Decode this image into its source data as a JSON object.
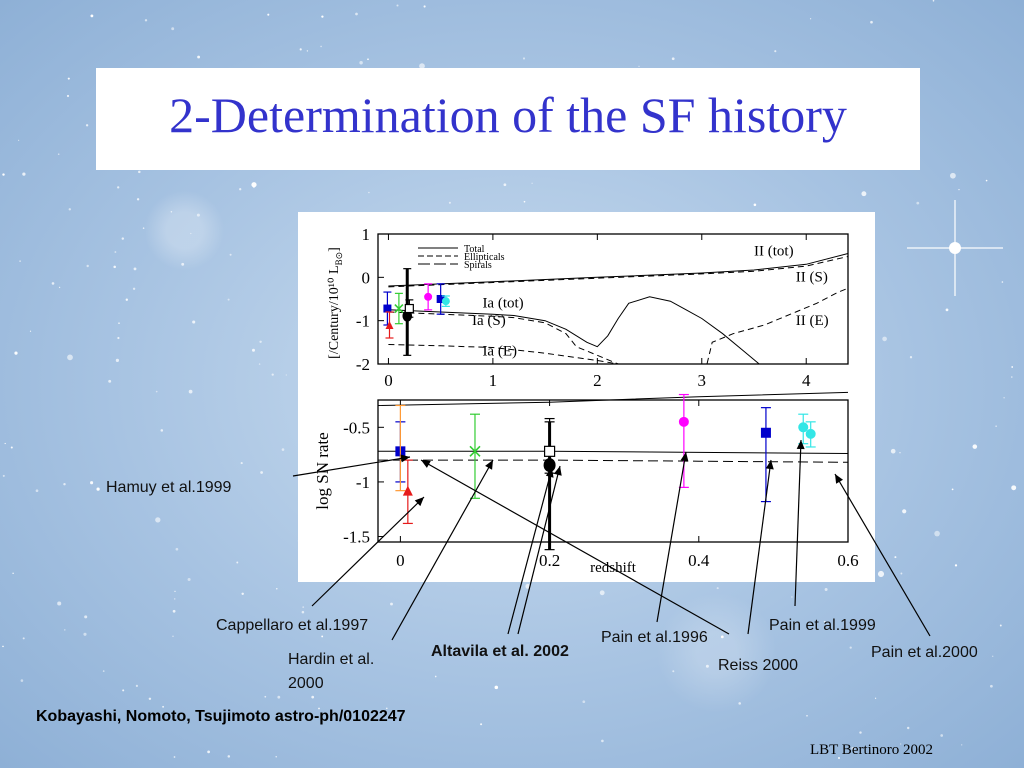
{
  "slide": {
    "title": "2-Determination of the SF history",
    "citation": "Kobayashi, Nomoto, Tsujimoto astro-ph/0102247",
    "footer": "LBT Bertinoro 2002"
  },
  "annotations": {
    "hamuy": "Hamuy  et al.1999",
    "cappellaro": "Cappellaro  et al.1997",
    "hardin_line1": "Hardin et al.",
    "hardin_line2": "2000",
    "altavila": "Altavila et al. 2002",
    "pain1996": "Pain et al.1996",
    "reiss": "Reiss 2000",
    "pain1999": "Pain et al.1999",
    "pain2000": "Pain et al.2000"
  },
  "colors": {
    "title": "#3333cc",
    "blue": "#0000cc",
    "magenta": "#ff00ff",
    "cyan": "#33e6e6",
    "green": "#33cc33",
    "orange": "#ff9933",
    "red": "#e61a1a"
  },
  "chart_data": [
    {
      "type": "line",
      "xlim": [
        -0.1,
        4.4
      ],
      "ylim": [
        -2,
        1
      ],
      "xticks": [
        "0",
        "1",
        "2",
        "3",
        "4"
      ],
      "yticks": [
        "1",
        "0",
        "-1",
        "-2"
      ],
      "ylabel": "[/Century/10¹⁰ L",
      "ylabel_sub": "B⊙",
      "ylabel_end": "]",
      "legend": [
        "Total",
        "Ellipticals",
        "Spirals"
      ],
      "curve_labels": [
        "II (tot)",
        "II (S)",
        "II (E)",
        "Ia (tot)",
        "Ia (S)",
        "Ia (E)"
      ],
      "series": [
        {
          "name": "II (tot)",
          "dash": "solid",
          "x": [
            0,
            1,
            2,
            3,
            3.5,
            4,
            4.4
          ],
          "y": [
            -0.2,
            -0.1,
            0.0,
            0.1,
            0.17,
            0.3,
            0.55
          ]
        },
        {
          "name": "II (S)",
          "dash": "dashed",
          "x": [
            0,
            1,
            2,
            3,
            3.5,
            4,
            4.4
          ],
          "y": [
            -0.22,
            -0.12,
            -0.02,
            0.08,
            0.14,
            0.26,
            0.48
          ]
        },
        {
          "name": "Ia (tot)",
          "dash": "solid",
          "x": [
            0,
            0.5,
            1,
            1.2,
            1.5,
            1.7,
            1.9,
            2.0,
            2.1,
            2.2,
            2.3,
            2.5,
            2.7,
            2.85,
            3.0,
            3.2,
            3.4,
            3.55
          ],
          "y": [
            -0.75,
            -0.8,
            -0.85,
            -0.88,
            -1.0,
            -1.2,
            -1.5,
            -1.6,
            -1.35,
            -0.95,
            -0.6,
            -0.45,
            -0.55,
            -0.75,
            -0.95,
            -1.3,
            -1.7,
            -2.0
          ]
        },
        {
          "name": "Ia (S)",
          "dash": "dashed",
          "x": [
            0,
            0.5,
            1,
            1.2,
            1.5,
            1.7,
            1.8,
            2.0,
            2.1,
            2.2
          ],
          "y": [
            -0.8,
            -0.85,
            -0.9,
            -0.93,
            -1.05,
            -1.3,
            -1.6,
            -1.8,
            -1.9,
            -2.0
          ]
        },
        {
          "name": "Ia (E)",
          "dash": "dashed",
          "x": [
            0,
            0.5,
            1.0,
            1.5,
            2.0,
            2.2,
            3.05,
            3.1,
            3.3,
            3.6,
            3.9,
            4.1,
            4.3,
            4.4
          ],
          "y": [
            -1.55,
            -1.58,
            -1.62,
            -1.75,
            -1.92,
            -2.0,
            -2.0,
            -1.5,
            -1.3,
            -1.1,
            -0.8,
            -0.6,
            -0.35,
            -0.25
          ]
        }
      ],
      "points": [
        {
          "x": -0.01,
          "y": -0.72,
          "err": 0.38,
          "color": "#0000cc",
          "marker": "square"
        },
        {
          "x": 0.01,
          "y": -1.1,
          "err": 0.3,
          "color": "#e61a1a",
          "marker": "triangle"
        },
        {
          "x": 0.1,
          "y": -0.72,
          "err": 0.35,
          "color": "#33cc33",
          "marker": "x"
        },
        {
          "x": 0.18,
          "y": -0.8,
          "err": 1.0,
          "color": "#000000",
          "marker": "filled-bar"
        },
        {
          "x": 0.2,
          "y": -0.72,
          "err": 0.2,
          "color": "#000000",
          "marker": "open-square"
        },
        {
          "x": 0.38,
          "y": -0.45,
          "err": 0.3,
          "color": "#ff00ff",
          "marker": "circle"
        },
        {
          "x": 0.5,
          "y": -0.5,
          "err": 0.35,
          "color": "#0000cc",
          "marker": "square"
        },
        {
          "x": 0.55,
          "y": -0.55,
          "err": 0.12,
          "color": "#33e6e6",
          "marker": "circle"
        }
      ]
    },
    {
      "type": "scatter",
      "xlabel": "redshift",
      "ylabel": "log SN rate",
      "xlim": [
        -0.03,
        0.6
      ],
      "ylim": [
        -1.55,
        -0.25
      ],
      "xticks": [
        "0",
        "0.2",
        "0.4",
        "0.6"
      ],
      "yticks": [
        "-0.5",
        "-1",
        "-1.5"
      ],
      "lines": [
        {
          "dash": "solid",
          "x": [
            -0.03,
            0.2,
            0.4,
            0.6
          ],
          "y": [
            -0.3,
            -0.27,
            -0.22,
            -0.18
          ]
        },
        {
          "dash": "solid",
          "x": [
            -0.03,
            0.2,
            0.4,
            0.6
          ],
          "y": [
            -0.72,
            -0.72,
            -0.73,
            -0.74
          ]
        },
        {
          "dash": "dashed",
          "x": [
            -0.03,
            0.2,
            0.4,
            0.6
          ],
          "y": [
            -0.8,
            -0.8,
            -0.81,
            -0.82
          ]
        }
      ],
      "points": [
        {
          "x": 0.0,
          "y": -0.72,
          "ylo": -1.0,
          "yhi": -0.45,
          "color": "#0000cc",
          "marker": "square"
        },
        {
          "x": 0.0,
          "y": -0.73,
          "ylo": -1.08,
          "yhi": -0.3,
          "color": "#ff9933",
          "marker": "none"
        },
        {
          "x": 0.01,
          "y": -1.08,
          "ylo": -1.38,
          "yhi": -0.8,
          "color": "#e61a1a",
          "marker": "triangle"
        },
        {
          "x": 0.1,
          "y": -0.72,
          "ylo": -1.15,
          "yhi": -0.38,
          "color": "#33cc33",
          "marker": "x"
        },
        {
          "x": 0.2,
          "y": -0.8,
          "ylo": -1.62,
          "yhi": -0.45,
          "color": "#000000",
          "marker": "filled-bar"
        },
        {
          "x": 0.2,
          "y": -0.72,
          "ylo": -0.92,
          "yhi": -0.42,
          "color": "#000000",
          "marker": "open-square"
        },
        {
          "x": 0.38,
          "y": -0.45,
          "ylo": -1.05,
          "yhi": -0.2,
          "color": "#ff00ff",
          "marker": "circle"
        },
        {
          "x": 0.49,
          "y": -0.55,
          "ylo": -1.18,
          "yhi": -0.32,
          "color": "#0000cc",
          "marker": "square"
        },
        {
          "x": 0.54,
          "y": -0.5,
          "ylo": -0.65,
          "yhi": -0.38,
          "color": "#33e6e6",
          "marker": "circle"
        },
        {
          "x": 0.55,
          "y": -0.56,
          "ylo": -0.68,
          "yhi": -0.45,
          "color": "#33e6e6",
          "marker": "circle"
        }
      ]
    }
  ]
}
